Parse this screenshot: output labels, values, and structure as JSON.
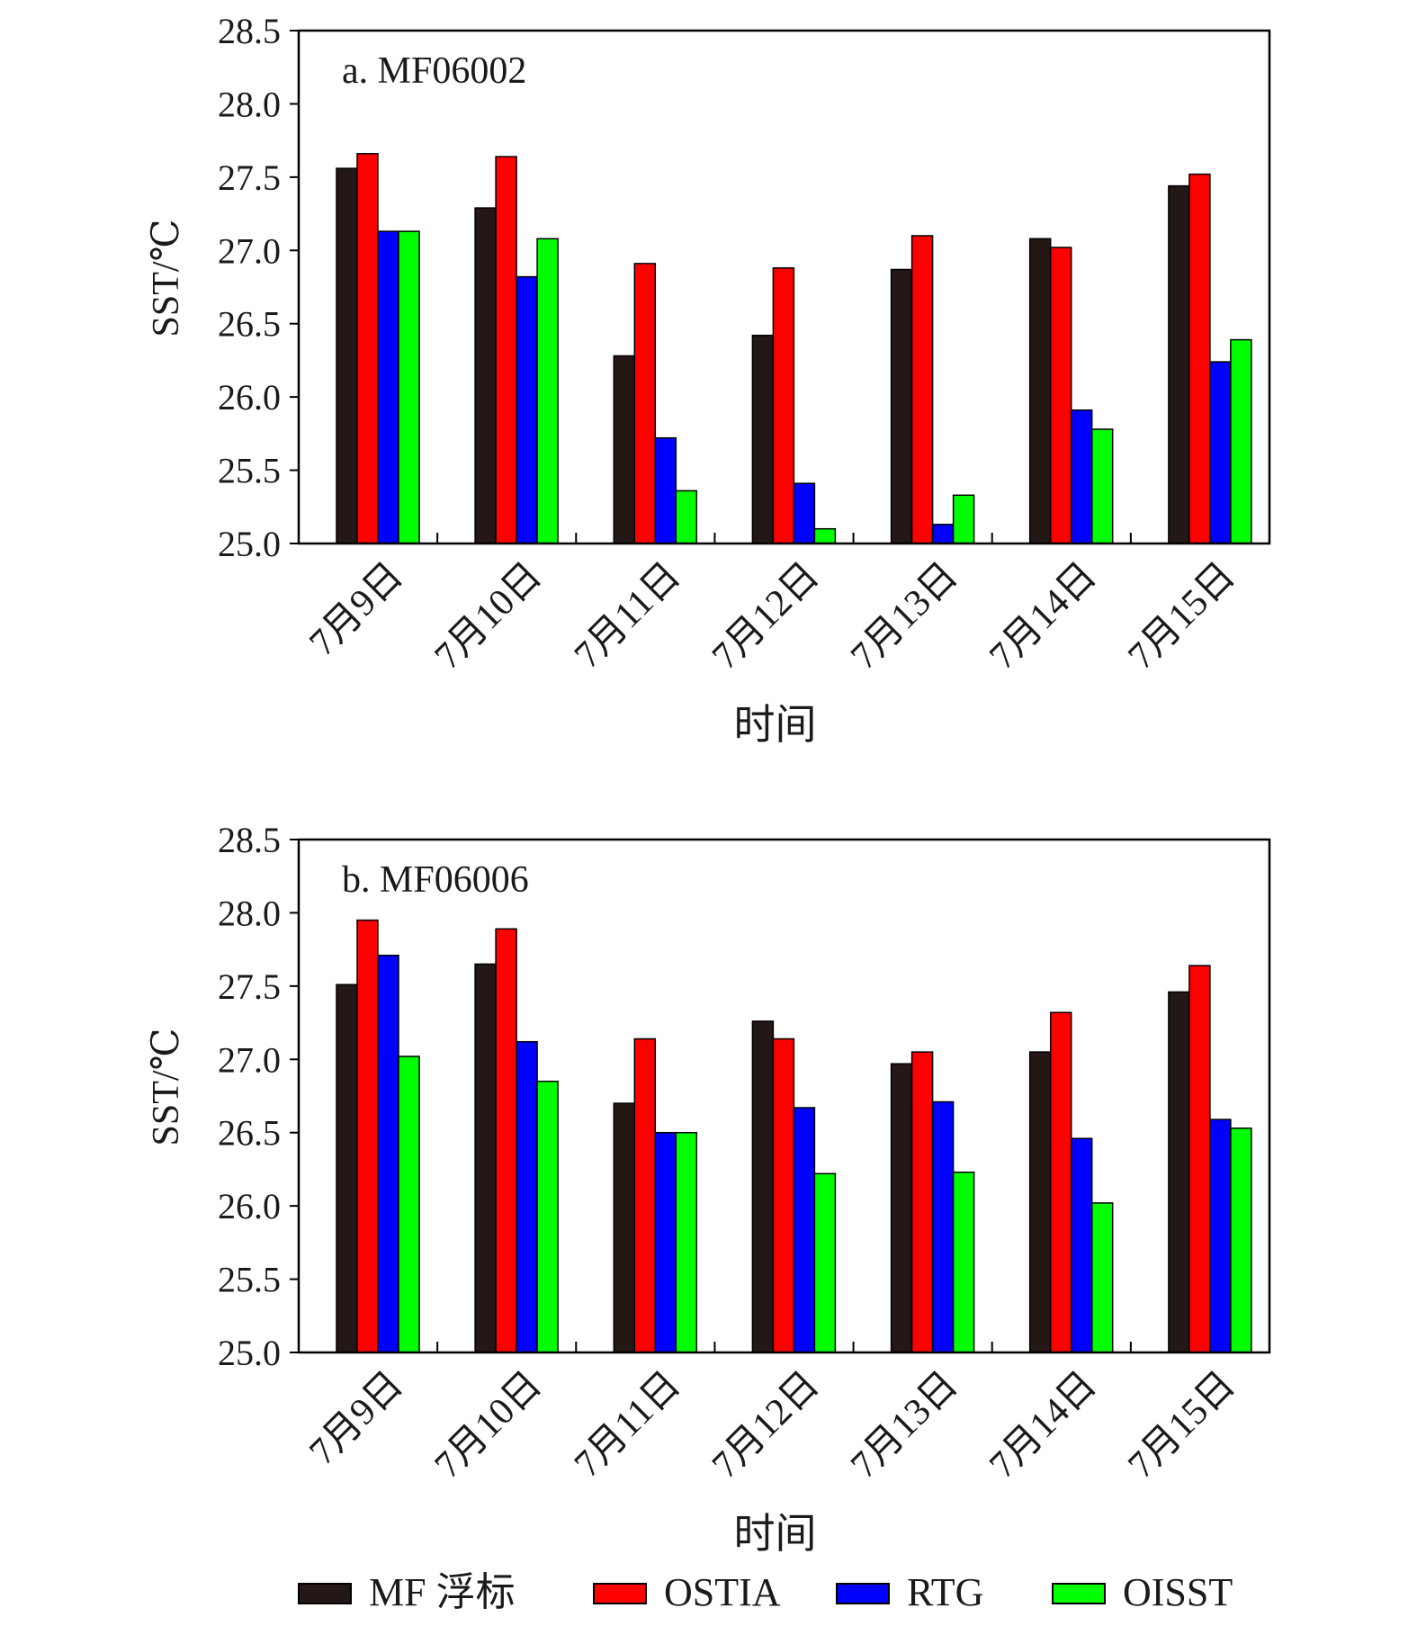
{
  "colors": {
    "MF": "#231815",
    "OSTIA": "#ff0000",
    "RTG": "#0000ff",
    "OISST": "#00ff00"
  },
  "legend": [
    {
      "key": "MF",
      "label": "MF 浮标"
    },
    {
      "key": "OSTIA",
      "label": "OSTIA"
    },
    {
      "key": "RTG",
      "label": "RTG"
    },
    {
      "key": "OISST",
      "label": "OISST"
    }
  ],
  "chart_data": [
    {
      "type": "bar",
      "panel_label": "a. MF06002",
      "categories": [
        "7月9日",
        "7月10日",
        "7月11日",
        "7月12日",
        "7月13日",
        "7月14日",
        "7月15日"
      ],
      "xlabel": "时间",
      "ylabel": "SST/℃",
      "ylim": [
        25.0,
        28.5
      ],
      "yticks": [
        "25.0",
        "25.5",
        "26.0",
        "26.5",
        "27.0",
        "27.5",
        "28.0",
        "28.5"
      ],
      "series": [
        {
          "key": "MF",
          "name": "MF 浮标",
          "values": [
            27.56,
            27.29,
            26.28,
            26.42,
            26.87,
            27.08,
            27.44
          ]
        },
        {
          "key": "OSTIA",
          "name": "OSTIA",
          "values": [
            27.66,
            27.64,
            26.91,
            26.88,
            27.1,
            27.02,
            27.52
          ]
        },
        {
          "key": "RTG",
          "name": "RTG",
          "values": [
            27.13,
            26.82,
            25.72,
            25.41,
            25.13,
            25.91,
            26.24
          ]
        },
        {
          "key": "OISST",
          "name": "OISST",
          "values": [
            27.13,
            27.08,
            25.36,
            25.1,
            25.33,
            25.78,
            26.39
          ]
        }
      ]
    },
    {
      "type": "bar",
      "panel_label": "b. MF06006",
      "categories": [
        "7月9日",
        "7月10日",
        "7月11日",
        "7月12日",
        "7月13日",
        "7月14日",
        "7月15日"
      ],
      "xlabel": "时间",
      "ylabel": "SST/℃",
      "ylim": [
        25.0,
        28.5
      ],
      "yticks": [
        "25.0",
        "25.5",
        "26.0",
        "26.5",
        "27.0",
        "27.5",
        "28.0",
        "28.5"
      ],
      "series": [
        {
          "key": "MF",
          "name": "MF 浮标",
          "values": [
            27.51,
            27.65,
            26.7,
            27.26,
            26.97,
            27.05,
            27.46
          ]
        },
        {
          "key": "OSTIA",
          "name": "OSTIA",
          "values": [
            27.95,
            27.89,
            27.14,
            27.14,
            27.05,
            27.32,
            27.64
          ]
        },
        {
          "key": "RTG",
          "name": "RTG",
          "values": [
            27.71,
            27.12,
            26.5,
            26.67,
            26.71,
            26.46,
            26.59
          ]
        },
        {
          "key": "OISST",
          "name": "OISST",
          "values": [
            27.02,
            26.85,
            26.5,
            26.22,
            26.23,
            26.02,
            26.53
          ]
        }
      ]
    }
  ]
}
